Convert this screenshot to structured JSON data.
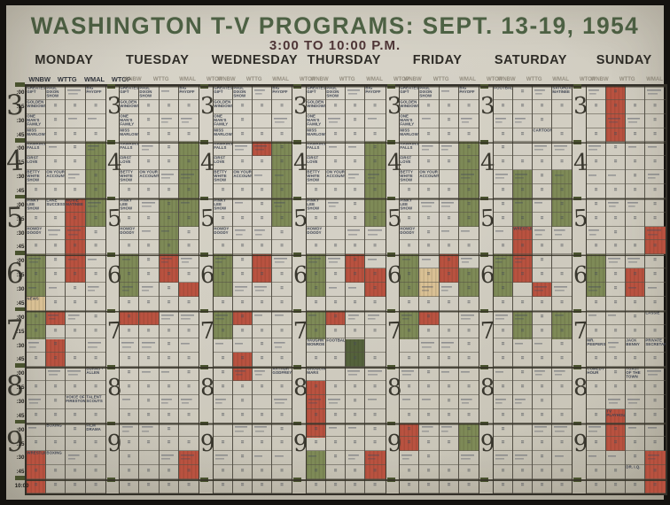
{
  "title": "WASHINGTON T-V PROGRAMS: SEPT. 13-19, 1954",
  "subtitle": "3:00 TO 10:00 P.M.",
  "days": [
    "MONDAY",
    "TUESDAY",
    "WEDNESDAY",
    "THURSDAY",
    "FRIDAY",
    "SATURDAY",
    "SUNDAY"
  ],
  "stations": [
    "WNBW",
    "WTTG",
    "WMAL",
    "WTOP"
  ],
  "time": {
    "hour_digits": [
      "3",
      "4",
      "5",
      "6",
      "7",
      "8",
      "9"
    ],
    "quarter_labels": [
      ":00",
      ":15",
      ":30",
      ":45"
    ],
    "end_label": "10:00"
  },
  "ditto_mark": "=",
  "colors": {
    "board": "#d0ccc0",
    "title_green": "#4d6144",
    "subtitle_maroon": "#4e3536",
    "ink": "#3e4452",
    "pencil": "#948e80",
    "grid_line": "#545046",
    "program_green": "#7e8a57",
    "program_dark_green": "#55623c",
    "program_red": "#b95240",
    "program_tan": "#d9c094"
  },
  "schedule": {
    "weekday_strip_note": "entries repeated Monday through Friday",
    "weekday_strip": [
      {
        "col": 0,
        "row": 0,
        "text": "GREATEST GIFT"
      },
      {
        "col": 0,
        "row": 1,
        "text": "GOLDEN WINDOWS"
      },
      {
        "col": 0,
        "row": 2,
        "text": "ONE MAN'S FAMILY"
      },
      {
        "col": 0,
        "row": 3,
        "text": "MISS MARLOWE"
      },
      {
        "col": 0,
        "row": 4,
        "text": "HAWKINS FALLS"
      },
      {
        "col": 0,
        "row": 5,
        "text": "FIRST LOVE"
      },
      {
        "col": 0,
        "row": 6,
        "text": "BETTY WHITE SHOW"
      },
      {
        "col": 0,
        "row": 8,
        "text": "PINKY LEE SHOW"
      },
      {
        "col": 0,
        "row": 10,
        "text": "HOWDY DOODY"
      },
      {
        "col": 1,
        "row": 0,
        "text": "PAUL DIXON SHOW"
      },
      {
        "col": 1,
        "row": 6,
        "text": "ON YOUR ACCOUNT"
      },
      {
        "col": 3,
        "row": 0,
        "text": "BIG PAYOFF"
      }
    ],
    "entries": [
      {
        "day": 0,
        "col": 1,
        "row": 8,
        "text": "LAKE SUCCESS"
      },
      {
        "day": 0,
        "col": 2,
        "row": 8,
        "text": "MOVIE MATINEE"
      },
      {
        "day": 0,
        "col": 0,
        "row": 15,
        "text": "NEWS"
      },
      {
        "day": 0,
        "col": 3,
        "row": 20,
        "text": "BURNS + ALLEN"
      },
      {
        "day": 0,
        "col": 2,
        "row": 22,
        "text": "VOICE OF FIRESTONE"
      },
      {
        "day": 0,
        "col": 3,
        "row": 22,
        "text": "TALENT SCOUTS"
      },
      {
        "day": 0,
        "col": 1,
        "row": 24,
        "text": "BOXING"
      },
      {
        "day": 0,
        "col": 3,
        "row": 24,
        "text": "FILM DRAMA"
      },
      {
        "day": 0,
        "col": 0,
        "row": 26,
        "text": "WRESTLING"
      },
      {
        "day": 0,
        "col": 1,
        "row": 26,
        "text": "BOXING"
      },
      {
        "day": 2,
        "col": 3,
        "row": 20,
        "text": "ARTHUR GODFREY"
      },
      {
        "day": 3,
        "col": 0,
        "row": 18,
        "text": "VAUGHN MONROE"
      },
      {
        "day": 3,
        "col": 1,
        "row": 18,
        "text": "FOOTBALL"
      },
      {
        "day": 3,
        "col": 0,
        "row": 20,
        "text": "GROUCHO MARX"
      },
      {
        "day": 5,
        "col": 0,
        "row": 0,
        "text": "FOOTBALL"
      },
      {
        "day": 5,
        "col": 3,
        "row": 0,
        "text": "SATURDAY MATINEE"
      },
      {
        "day": 5,
        "col": 2,
        "row": 3,
        "text": "CARTOONS"
      },
      {
        "day": 5,
        "col": 1,
        "row": 10,
        "text": "WRESTLING"
      },
      {
        "day": 6,
        "col": 3,
        "row": 16,
        "text": "LASSIE"
      },
      {
        "day": 6,
        "col": 0,
        "row": 18,
        "text": "MR. PEEPERS"
      },
      {
        "day": 6,
        "col": 2,
        "row": 18,
        "text": "JACK BENNY"
      },
      {
        "day": 6,
        "col": 3,
        "row": 18,
        "text": "PRIVATE SECRETARY"
      },
      {
        "day": 6,
        "col": 0,
        "row": 20,
        "text": "COMEDY HOUR"
      },
      {
        "day": 6,
        "col": 2,
        "row": 20,
        "text": "TOAST OF THE TOWN"
      },
      {
        "day": 6,
        "col": 1,
        "row": 23,
        "text": "TV PLAYHOUSE"
      },
      {
        "day": 6,
        "col": 2,
        "row": 27,
        "text": "DR. I.Q."
      }
    ],
    "blocks": [
      {
        "day": 0,
        "col": 3,
        "from": 4,
        "to": 9,
        "color": "green"
      },
      {
        "day": 0,
        "col": 2,
        "from": 8,
        "to": 13,
        "color": "red"
      },
      {
        "day": 0,
        "col": 0,
        "from": 12,
        "to": 14,
        "color": "green"
      },
      {
        "day": 0,
        "col": 0,
        "from": 15,
        "to": 15,
        "color": "tan"
      },
      {
        "day": 0,
        "col": 0,
        "from": 16,
        "to": 17,
        "color": "green"
      },
      {
        "day": 0,
        "col": 1,
        "from": 16,
        "to": 16,
        "color": "red"
      },
      {
        "day": 0,
        "col": 1,
        "from": 18,
        "to": 19,
        "color": "red"
      },
      {
        "day": 0,
        "col": 0,
        "from": 26,
        "to": 28,
        "color": "red"
      },
      {
        "day": 1,
        "col": 3,
        "from": 4,
        "to": 9,
        "color": "green"
      },
      {
        "day": 1,
        "col": 2,
        "from": 8,
        "to": 11,
        "color": "green"
      },
      {
        "day": 1,
        "col": 0,
        "from": 12,
        "to": 14,
        "color": "green"
      },
      {
        "day": 1,
        "col": 2,
        "from": 12,
        "to": 13,
        "color": "red"
      },
      {
        "day": 1,
        "col": 3,
        "from": 14,
        "to": 14,
        "color": "red"
      },
      {
        "day": 1,
        "col": 0,
        "from": 16,
        "to": 16,
        "color": "red"
      },
      {
        "day": 1,
        "col": 1,
        "from": 16,
        "to": 16,
        "color": "red"
      },
      {
        "day": 1,
        "col": 3,
        "from": 26,
        "to": 27,
        "color": "red"
      },
      {
        "day": 2,
        "col": 2,
        "from": 4,
        "to": 4,
        "color": "red"
      },
      {
        "day": 2,
        "col": 3,
        "from": 4,
        "to": 9,
        "color": "green"
      },
      {
        "day": 2,
        "col": 0,
        "from": 12,
        "to": 14,
        "color": "green"
      },
      {
        "day": 2,
        "col": 2,
        "from": 12,
        "to": 13,
        "color": "red"
      },
      {
        "day": 2,
        "col": 0,
        "from": 16,
        "to": 17,
        "color": "green"
      },
      {
        "day": 2,
        "col": 1,
        "from": 16,
        "to": 16,
        "color": "red"
      },
      {
        "day": 2,
        "col": 1,
        "from": 19,
        "to": 20,
        "color": "red"
      },
      {
        "day": 3,
        "col": 3,
        "from": 4,
        "to": 9,
        "color": "green"
      },
      {
        "day": 3,
        "col": 0,
        "from": 12,
        "to": 14,
        "color": "green"
      },
      {
        "day": 3,
        "col": 2,
        "from": 12,
        "to": 13,
        "color": "red"
      },
      {
        "day": 3,
        "col": 3,
        "from": 13,
        "to": 14,
        "color": "red"
      },
      {
        "day": 3,
        "col": 0,
        "from": 16,
        "to": 17,
        "color": "green"
      },
      {
        "day": 3,
        "col": 1,
        "from": 16,
        "to": 16,
        "color": "red"
      },
      {
        "day": 3,
        "col": 2,
        "from": 18,
        "to": 19,
        "color": "darkgreen"
      },
      {
        "day": 3,
        "col": 0,
        "from": 21,
        "to": 24,
        "color": "red"
      },
      {
        "day": 3,
        "col": 0,
        "from": 26,
        "to": 27,
        "color": "green"
      },
      {
        "day": 3,
        "col": 3,
        "from": 26,
        "to": 27,
        "color": "red"
      },
      {
        "day": 4,
        "col": 3,
        "from": 4,
        "to": 9,
        "color": "green"
      },
      {
        "day": 4,
        "col": 0,
        "from": 12,
        "to": 14,
        "color": "green"
      },
      {
        "day": 4,
        "col": 1,
        "from": 13,
        "to": 14,
        "color": "tan"
      },
      {
        "day": 4,
        "col": 2,
        "from": 12,
        "to": 13,
        "color": "red"
      },
      {
        "day": 4,
        "col": 3,
        "from": 13,
        "to": 14,
        "color": "green"
      },
      {
        "day": 4,
        "col": 0,
        "from": 16,
        "to": 17,
        "color": "green"
      },
      {
        "day": 4,
        "col": 1,
        "from": 16,
        "to": 16,
        "color": "red"
      },
      {
        "day": 4,
        "col": 0,
        "from": 24,
        "to": 25,
        "color": "red"
      },
      {
        "day": 4,
        "col": 3,
        "from": 24,
        "to": 25,
        "color": "green"
      },
      {
        "day": 5,
        "col": 1,
        "from": 6,
        "to": 9,
        "color": "green"
      },
      {
        "day": 5,
        "col": 3,
        "from": 6,
        "to": 9,
        "color": "green"
      },
      {
        "day": 5,
        "col": 1,
        "from": 10,
        "to": 13,
        "color": "red"
      },
      {
        "day": 5,
        "col": 0,
        "from": 12,
        "to": 14,
        "color": "green"
      },
      {
        "day": 5,
        "col": 2,
        "from": 14,
        "to": 14,
        "color": "red"
      },
      {
        "day": 5,
        "col": 1,
        "from": 16,
        "to": 17,
        "color": "green"
      },
      {
        "day": 5,
        "col": 3,
        "from": 16,
        "to": 17,
        "color": "green"
      },
      {
        "day": 6,
        "col": 1,
        "from": 0,
        "to": 3,
        "color": "red"
      },
      {
        "day": 6,
        "col": 3,
        "from": 10,
        "to": 11,
        "color": "red"
      },
      {
        "day": 6,
        "col": 0,
        "from": 12,
        "to": 14,
        "color": "green"
      },
      {
        "day": 6,
        "col": 2,
        "from": 13,
        "to": 14,
        "color": "red"
      },
      {
        "day": 6,
        "col": 1,
        "from": 23,
        "to": 25,
        "color": "red"
      },
      {
        "day": 6,
        "col": 3,
        "from": 26,
        "to": 28,
        "color": "red"
      }
    ]
  }
}
